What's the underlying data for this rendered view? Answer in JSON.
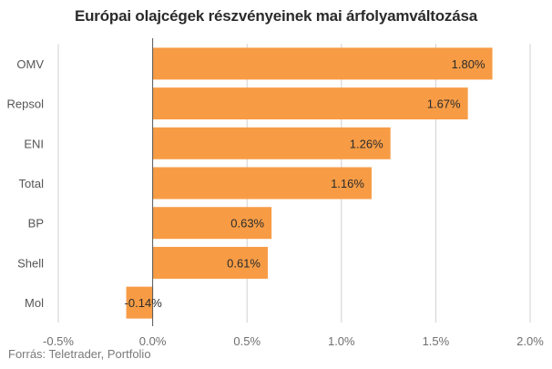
{
  "chart_data": {
    "type": "bar",
    "orientation": "horizontal",
    "title": "Európai olajcégek részvényeinek mai árfolyamváltozása",
    "categories": [
      "OMV",
      "Repsol",
      "ENI",
      "Total",
      "BP",
      "Shell",
      "Mol"
    ],
    "values": [
      1.8,
      1.67,
      1.26,
      1.16,
      0.63,
      0.61,
      -0.14
    ],
    "data_labels": [
      "1.80%",
      "1.67%",
      "1.26%",
      "1.16%",
      "0.63%",
      "0.61%",
      "-0.14%"
    ],
    "xlim": [
      -0.5,
      2.0
    ],
    "x_ticks": [
      -0.5,
      0.0,
      0.5,
      1.0,
      1.5,
      2.0
    ],
    "x_tick_labels": [
      "-0.5%",
      "0.0%",
      "0.5%",
      "1.0%",
      "1.5%",
      "2.0%"
    ],
    "grid": true,
    "bar_color": "#f79c45",
    "zero_line_color": "#555555",
    "grid_color": "#d0d0d0"
  },
  "source": "Forrás: Teletrader, Portfolio"
}
